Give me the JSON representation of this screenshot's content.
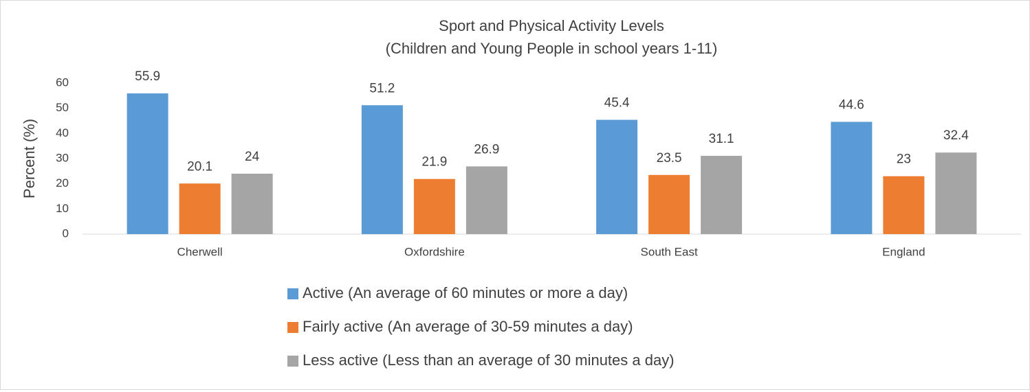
{
  "chart_data": {
    "type": "bar",
    "title": "Sport and Physical Activity Levels",
    "subtitle": "(Children and Young People in school years 1-11)",
    "y_label": "Percent (%)",
    "categories": [
      "Cherwell",
      "Oxfordshire",
      "South East",
      "England"
    ],
    "series": [
      {
        "name": "Active (An average of 60 minutes or more a day)",
        "color": "#5b9bd5",
        "values": [
          55.9,
          51.2,
          45.4,
          44.6
        ]
      },
      {
        "name": "Fairly active (An average of 30-59 minutes a day)",
        "color": "#ed7d31",
        "values": [
          20.1,
          21.9,
          23.5,
          23
        ]
      },
      {
        "name": "Less active (Less than an average of 30 minutes a day)",
        "color": "#a5a5a5",
        "values": [
          24,
          26.9,
          31.1,
          32.4
        ]
      }
    ],
    "ylim": [
      0,
      60
    ],
    "yticks": [
      0,
      10,
      20,
      30,
      40,
      50,
      60
    ],
    "grid": false,
    "legend": "bottom",
    "data_labels": true
  }
}
